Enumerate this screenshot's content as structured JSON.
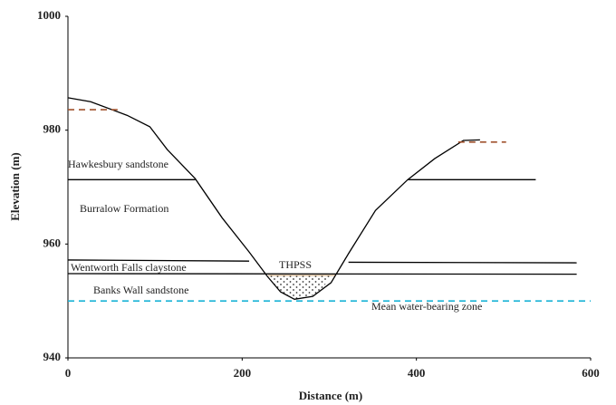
{
  "chart_data": {
    "type": "line",
    "x_label": "Distance (m)",
    "y_label": "Elevation (m)",
    "xlim": [
      0,
      600
    ],
    "ylim": [
      940,
      1000
    ],
    "xticks": [
      0,
      200,
      400,
      600
    ],
    "yticks": [
      940,
      960,
      980,
      1000
    ],
    "annotations": [
      "Hawkesbury sandstone",
      "Burralow Formation",
      "Wentworth Falls claystone",
      "THPSS",
      "Banks Wall sandstone",
      "Mean water-bearing zone"
    ],
    "series": [
      {
        "color": "#000000",
        "dashed": false,
        "x": [
          0,
          26,
          68,
          94,
          114,
          146,
          177,
          208,
          229,
          244,
          260,
          281,
          302,
          322,
          353,
          390,
          421,
          454,
          473
        ],
        "values": [
          985.7,
          985.0,
          982.6,
          980.6,
          976.6,
          971.5,
          964.6,
          958.6,
          954.3,
          951.6,
          950.3,
          950.8,
          953.2,
          958.3,
          965.9,
          971.3,
          975.0,
          978.2,
          978.3
        ]
      },
      {
        "color": "#000000",
        "dashed": false,
        "x": [
          0,
          146,
          268,
          390,
          537
        ],
        "values": [
          971.3,
          971.3,
          null,
          971.3,
          971.3
        ]
      },
      {
        "color": "#000000",
        "dashed": false,
        "x": [
          0,
          208,
          265,
          322,
          584
        ],
        "values": [
          957.2,
          957.0,
          null,
          956.8,
          956.7
        ]
      },
      {
        "color": "#000000",
        "dashed": false,
        "x": [
          0,
          584
        ],
        "values": [
          954.8,
          954.7
        ]
      },
      {
        "color": "#1bb3d6",
        "dashed": true,
        "x": [
          0,
          600
        ],
        "values": [
          950.0,
          950.0
        ]
      },
      {
        "color": "#a0522d",
        "dashed": true,
        "x": [
          0,
          57
        ],
        "values": [
          983.6,
          983.6
        ]
      },
      {
        "color": "#a0522d",
        "dashed": true,
        "x": [
          448,
          503
        ],
        "values": [
          977.9,
          977.9
        ]
      }
    ]
  }
}
